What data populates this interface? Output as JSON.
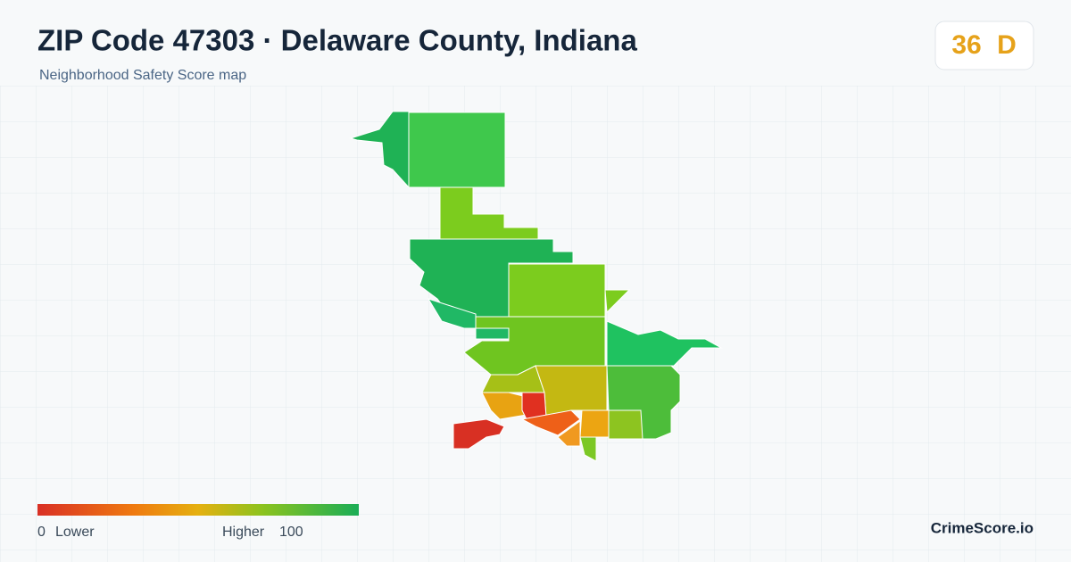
{
  "header": {
    "title": "ZIP Code 47303 · Delaware County, Indiana",
    "subtitle": "Neighborhood Safety Score map"
  },
  "score": {
    "value": "36",
    "grade": "D"
  },
  "legend": {
    "min": "0",
    "min_label": "Lower",
    "max_label": "Higher",
    "max": "100"
  },
  "brand": "CrimeScore.io"
}
